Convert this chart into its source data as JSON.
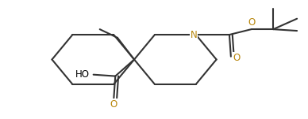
{
  "bg_color": "#ffffff",
  "bond_color": "#333333",
  "n_color": "#b8860b",
  "o_color": "#b8860b",
  "text_color": "#000000",
  "line_width": 1.5,
  "fig_width": 3.88,
  "fig_height": 1.51,
  "dpi": 100,
  "xlim": [
    0,
    10
  ],
  "ylim": [
    0,
    3.9
  ]
}
